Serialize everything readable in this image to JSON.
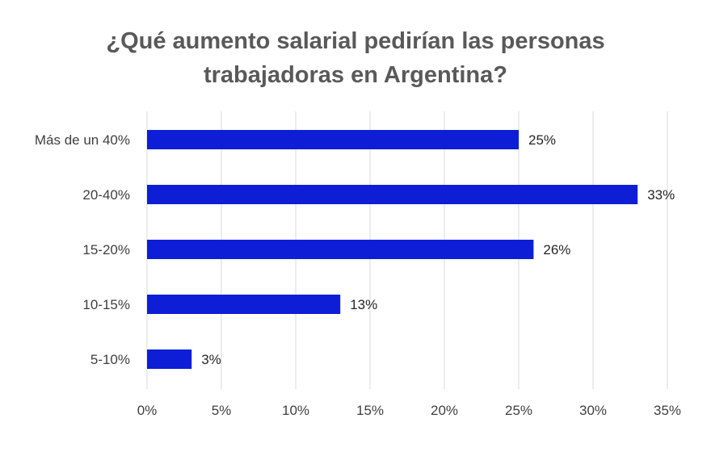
{
  "chart_data": {
    "type": "bar",
    "orientation": "horizontal",
    "title": "¿Qué aumento salarial pedirían las personas trabajadoras en Argentina?",
    "title_lines": [
      "¿Qué aumento salarial pedirían las personas",
      "trabajadoras en Argentina?"
    ],
    "categories": [
      "Más de un 40%",
      "20-40%",
      "15-20%",
      "10-15%",
      "5-10%"
    ],
    "values": [
      25,
      33,
      26,
      13,
      3
    ],
    "data_labels": [
      "25%",
      "33%",
      "26%",
      "13%",
      "3%"
    ],
    "x_ticks": [
      0,
      5,
      10,
      15,
      20,
      25,
      30,
      35
    ],
    "x_tick_labels": [
      "0%",
      "5%",
      "10%",
      "15%",
      "20%",
      "25%",
      "30%",
      "35%"
    ],
    "xlim": [
      0,
      35
    ],
    "xlabel": "",
    "ylabel": "",
    "grid": "vertical",
    "legend": "none",
    "bar_color": "#0d1ed6"
  }
}
